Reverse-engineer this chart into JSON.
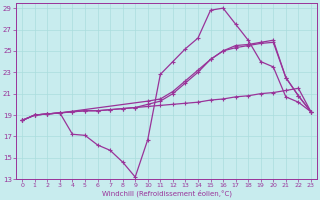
{
  "background_color": "#c8ecee",
  "grid_color": "#aadddd",
  "line_color": "#993399",
  "xlim_min": -0.5,
  "xlim_max": 23.5,
  "ylim_min": 13,
  "ylim_max": 29.5,
  "yticks": [
    13,
    15,
    17,
    19,
    21,
    23,
    25,
    27,
    29
  ],
  "xticks": [
    0,
    1,
    2,
    3,
    4,
    5,
    6,
    7,
    8,
    9,
    10,
    11,
    12,
    13,
    14,
    15,
    16,
    17,
    18,
    19,
    20,
    21,
    22,
    23
  ],
  "xlabel": "Windchill (Refroidissement éolien,°C)",
  "line1_x": [
    0,
    1,
    2,
    3,
    4,
    5,
    6,
    7,
    8,
    9,
    10,
    11,
    12,
    13,
    14,
    15,
    16,
    17,
    18,
    19,
    20,
    21,
    22,
    23
  ],
  "line1_y": [
    18.5,
    19.0,
    19.1,
    19.2,
    19.3,
    19.4,
    19.4,
    19.5,
    19.6,
    19.7,
    19.8,
    19.9,
    20.0,
    20.1,
    20.2,
    20.4,
    20.5,
    20.7,
    20.8,
    21.0,
    21.1,
    21.3,
    21.5,
    19.3
  ],
  "line2_x": [
    0,
    1,
    2,
    3,
    4,
    5,
    6,
    7,
    8,
    9,
    10,
    11,
    12,
    13,
    14,
    15,
    16,
    17,
    18,
    19,
    20,
    21,
    22,
    23
  ],
  "line2_y": [
    18.5,
    19.0,
    19.1,
    19.2,
    19.3,
    19.4,
    19.4,
    19.5,
    19.6,
    19.7,
    20.0,
    20.3,
    21.0,
    22.0,
    23.0,
    24.2,
    25.0,
    25.3,
    25.5,
    25.7,
    25.8,
    22.5,
    20.8,
    19.3
  ],
  "line3_x": [
    0,
    1,
    2,
    3,
    10,
    11,
    12,
    13,
    14,
    15,
    16,
    17,
    18,
    19,
    20,
    21,
    22,
    23
  ],
  "line3_y": [
    18.5,
    19.0,
    19.1,
    19.2,
    20.3,
    20.5,
    21.2,
    22.2,
    23.2,
    24.2,
    25.0,
    25.5,
    25.6,
    25.8,
    26.0,
    22.5,
    20.8,
    19.3
  ],
  "line4_x": [
    0,
    1,
    2,
    3,
    4,
    5,
    6,
    7,
    8,
    9,
    10,
    11,
    12,
    13,
    14,
    15,
    16,
    17,
    18,
    19,
    20,
    21,
    22,
    23
  ],
  "line4_y": [
    18.5,
    19.0,
    19.1,
    19.2,
    17.2,
    17.1,
    16.2,
    15.7,
    14.6,
    13.2,
    16.7,
    22.8,
    24.0,
    25.2,
    26.2,
    28.8,
    29.0,
    27.5,
    26.0,
    24.0,
    23.5,
    20.7,
    20.2,
    19.3
  ]
}
